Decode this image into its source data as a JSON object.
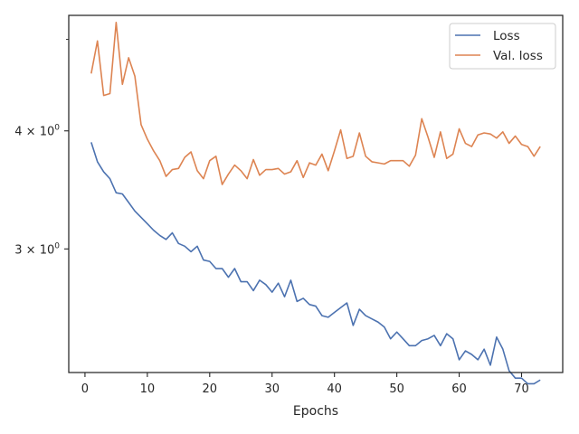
{
  "chart_data": {
    "type": "line",
    "title": "",
    "xlabel": "Epochs",
    "ylabel": "",
    "yscale": "log",
    "xlim": [
      -2.6,
      76.6
    ],
    "ylim": [
      2.22,
      5.3
    ],
    "grid": false,
    "legend_position": "top-right",
    "x_ticks": [
      0,
      10,
      20,
      30,
      40,
      50,
      60,
      70
    ],
    "x_tick_labels": [
      "0",
      "10",
      "20",
      "30",
      "40",
      "50",
      "60",
      "70"
    ],
    "y_ticks": [
      3,
      4
    ],
    "y_tick_labels": [
      "3 × 10",
      "4 × 10"
    ],
    "y_tick_exponent": "0",
    "x": [
      1,
      2,
      3,
      4,
      5,
      6,
      7,
      8,
      9,
      10,
      11,
      12,
      13,
      14,
      15,
      16,
      17,
      18,
      19,
      20,
      21,
      22,
      23,
      24,
      25,
      26,
      27,
      28,
      29,
      30,
      31,
      32,
      33,
      34,
      35,
      36,
      37,
      38,
      39,
      40,
      41,
      42,
      43,
      44,
      45,
      46,
      47,
      48,
      49,
      50,
      51,
      52,
      53,
      54,
      55,
      56,
      57,
      58,
      59,
      60,
      61,
      62,
      63,
      64,
      65,
      66,
      67,
      68,
      69,
      70,
      71,
      72,
      73
    ],
    "series": [
      {
        "name": "Loss",
        "color": "#4c72b0",
        "values": [
          3.89,
          3.71,
          3.62,
          3.56,
          3.44,
          3.43,
          3.36,
          3.29,
          3.24,
          3.19,
          3.14,
          3.1,
          3.07,
          3.12,
          3.04,
          3.02,
          2.98,
          3.02,
          2.92,
          2.91,
          2.86,
          2.86,
          2.8,
          2.86,
          2.77,
          2.77,
          2.71,
          2.78,
          2.75,
          2.7,
          2.76,
          2.67,
          2.78,
          2.64,
          2.66,
          2.62,
          2.61,
          2.55,
          2.54,
          2.57,
          2.6,
          2.63,
          2.49,
          2.59,
          2.55,
          2.53,
          2.51,
          2.48,
          2.41,
          2.45,
          2.41,
          2.37,
          2.37,
          2.4,
          2.41,
          2.43,
          2.37,
          2.44,
          2.41,
          2.29,
          2.34,
          2.32,
          2.29,
          2.35,
          2.26,
          2.42,
          2.35,
          2.23,
          2.19,
          2.19,
          2.16,
          2.16,
          2.18
        ]
      },
      {
        "name": "Val. loss",
        "color": "#dd8452",
        "values": [
          4.6,
          4.98,
          4.36,
          4.38,
          5.21,
          4.48,
          4.78,
          4.57,
          4.06,
          3.92,
          3.81,
          3.72,
          3.58,
          3.64,
          3.65,
          3.75,
          3.8,
          3.63,
          3.56,
          3.72,
          3.76,
          3.51,
          3.6,
          3.68,
          3.63,
          3.56,
          3.73,
          3.59,
          3.64,
          3.64,
          3.65,
          3.6,
          3.62,
          3.72,
          3.57,
          3.7,
          3.68,
          3.78,
          3.63,
          3.81,
          4.01,
          3.74,
          3.76,
          3.98,
          3.76,
          3.71,
          3.7,
          3.69,
          3.72,
          3.72,
          3.72,
          3.67,
          3.77,
          4.12,
          3.94,
          3.75,
          3.99,
          3.74,
          3.78,
          4.02,
          3.88,
          3.85,
          3.96,
          3.98,
          3.97,
          3.93,
          3.99,
          3.88,
          3.95,
          3.87,
          3.85,
          3.76,
          3.85
        ]
      }
    ]
  }
}
